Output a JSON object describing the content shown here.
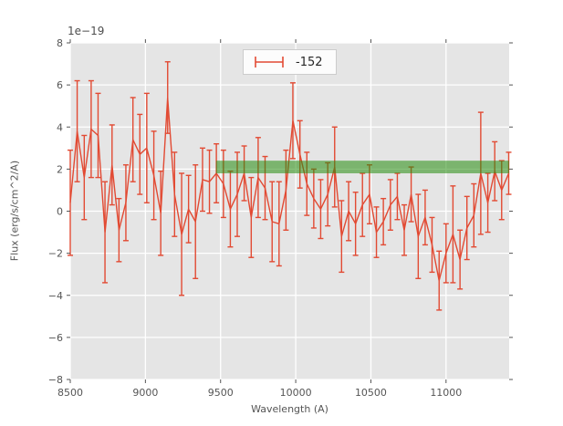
{
  "chart_data": {
    "type": "line",
    "subtype": "errorbar-spectrum",
    "title": "",
    "offset_text": "1e−19",
    "xlabel": "Wavelength (A)",
    "ylabel": "Flux (erg/s/cm^2/A)",
    "xlim": [
      8500,
      11420
    ],
    "ylim": [
      -8,
      8
    ],
    "xticks": [
      8500,
      9000,
      9500,
      10000,
      10500,
      11000
    ],
    "yticks": [
      -8,
      -6,
      -4,
      -2,
      0,
      2,
      4,
      6,
      8
    ],
    "grid": true,
    "legend": {
      "label": "-152",
      "position": "upper center",
      "marker": "errorbar"
    },
    "style": {
      "axes_background": "#E5E5E5",
      "figure_background": "#ffffff",
      "grid_color": "#ffffff",
      "tick_color": "#555555",
      "text_color": "#555555",
      "series_color": "#E24A33",
      "band_color": "#248C0D",
      "band_alpha": 0.55
    },
    "annotations": [
      {
        "type": "axhspan",
        "y0": 1.8,
        "y1": 2.4,
        "x0": 9470,
        "x1": 11420
      }
    ],
    "series": [
      {
        "name": "-152",
        "color": "#E24A33",
        "x": [
          8500,
          8546,
          8593,
          8639,
          8685,
          8731,
          8778,
          8824,
          8870,
          8917,
          8963,
          9009,
          9056,
          9102,
          9148,
          9194,
          9241,
          9287,
          9333,
          9380,
          9426,
          9472,
          9519,
          9565,
          9611,
          9657,
          9704,
          9750,
          9796,
          9843,
          9889,
          9935,
          9981,
          10028,
          10074,
          10120,
          10166,
          10213,
          10259,
          10305,
          10352,
          10398,
          10444,
          10491,
          10537,
          10583,
          10630,
          10676,
          10722,
          10768,
          10815,
          10861,
          10907,
          10954,
          11000,
          11046,
          11093,
          11139,
          11185,
          11231,
          11278,
          11324,
          11370,
          11417
        ],
        "y": [
          0.4,
          3.8,
          1.6,
          3.9,
          3.6,
          -1.0,
          2.2,
          -0.9,
          0.4,
          3.4,
          2.7,
          3.0,
          1.7,
          -0.1,
          5.4,
          0.8,
          -1.1,
          0.1,
          -0.5,
          1.5,
          1.4,
          1.8,
          1.3,
          0.1,
          0.8,
          1.8,
          -0.3,
          1.6,
          1.1,
          -0.5,
          -0.6,
          1.0,
          4.3,
          2.7,
          1.3,
          0.6,
          0.1,
          0.8,
          2.1,
          -1.2,
          0.0,
          -0.6,
          0.3,
          0.8,
          -1.0,
          -0.5,
          0.3,
          0.7,
          -0.9,
          0.8,
          -1.2,
          -0.3,
          -1.6,
          -3.3,
          -2.0,
          -1.1,
          -2.3,
          -0.8,
          -0.2,
          1.8,
          0.4,
          1.9,
          1.0,
          1.8
        ],
        "yerr": [
          2.5,
          2.4,
          2.0,
          2.3,
          2.0,
          2.4,
          1.9,
          1.5,
          1.8,
          2.0,
          1.9,
          2.6,
          2.1,
          2.0,
          1.7,
          2.0,
          2.9,
          1.6,
          2.7,
          1.5,
          1.5,
          1.4,
          1.6,
          1.8,
          2.0,
          1.3,
          1.9,
          1.9,
          1.5,
          1.9,
          2.0,
          1.9,
          1.8,
          1.6,
          1.5,
          1.4,
          1.4,
          1.5,
          1.9,
          1.7,
          1.4,
          1.5,
          1.5,
          1.4,
          1.2,
          1.1,
          1.2,
          1.1,
          1.2,
          1.3,
          2.0,
          1.3,
          1.3,
          1.4,
          1.4,
          2.3,
          1.4,
          1.5,
          1.5,
          2.9,
          1.4,
          1.4,
          1.4,
          1.0
        ]
      }
    ]
  }
}
